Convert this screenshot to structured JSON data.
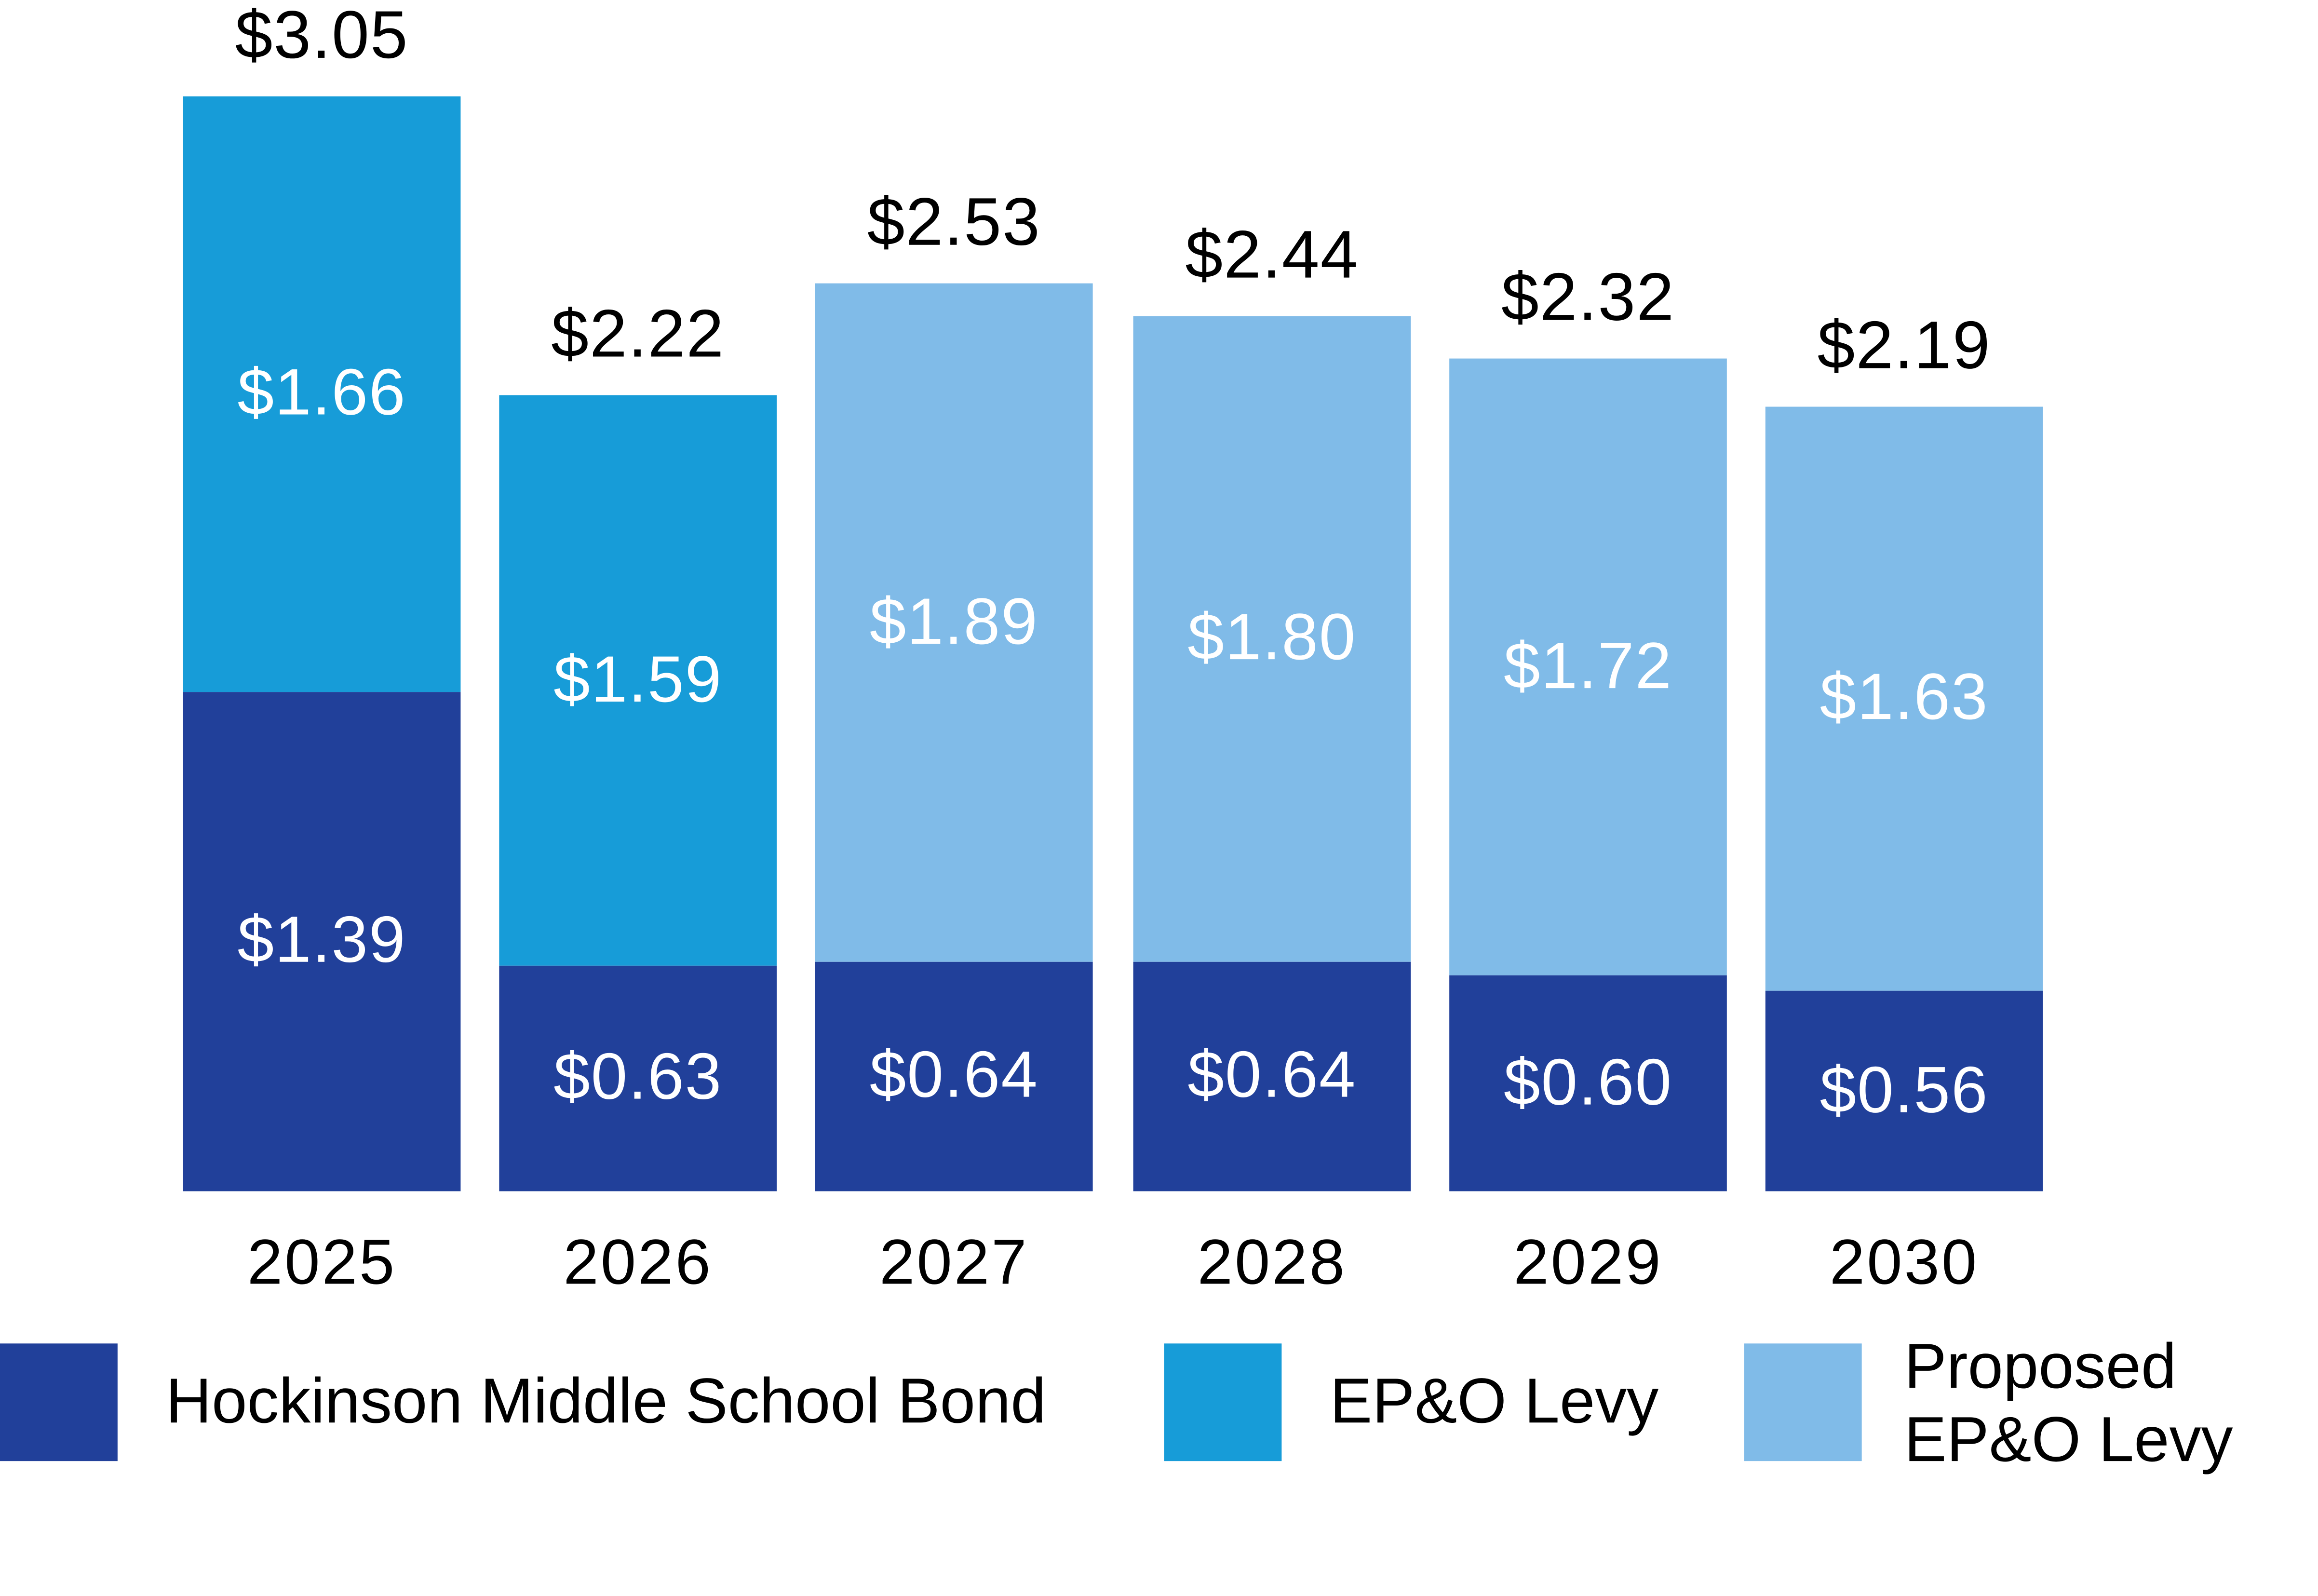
{
  "chart_data": {
    "type": "bar",
    "stacked": true,
    "title": "",
    "xlabel": "",
    "ylabel": "",
    "grid": false,
    "axes_visible": false,
    "legend_position": "bottom",
    "ylim": [
      0,
      3.3
    ],
    "categories": [
      "2025",
      "2026",
      "2027",
      "2028",
      "2029",
      "2030"
    ],
    "series": [
      {
        "name": "Hockinson Middle School Bond",
        "color": "#21409A",
        "values": [
          1.39,
          0.63,
          0.64,
          0.64,
          0.6,
          0.56
        ],
        "labels": [
          "$1.39",
          "$0.63",
          "$0.64",
          "$0.64",
          "$0.60",
          "$0.56"
        ]
      },
      {
        "name": "EP&O Levy",
        "color": "#179CD8",
        "values": [
          1.66,
          1.59,
          0,
          0,
          0,
          0
        ],
        "labels": [
          "$1.66",
          "$1.59",
          "",
          "",
          "",
          ""
        ]
      },
      {
        "name": "Proposed EP&O Levy",
        "color": "#80BBE8",
        "values": [
          0,
          0,
          1.89,
          1.8,
          1.72,
          1.63
        ],
        "labels": [
          "",
          "",
          "$1.89",
          "$1.80",
          "$1.72",
          "$1.63"
        ]
      }
    ],
    "totals": {
      "values": [
        3.05,
        2.22,
        2.53,
        2.44,
        2.32,
        2.19
      ],
      "labels": [
        "$3.05",
        "$2.22",
        "$2.53",
        "$2.44",
        "$2.32",
        "$2.19"
      ]
    },
    "value_label_color": "#FFFFFF",
    "total_label_color": "#000000"
  },
  "legend": {
    "items": [
      {
        "label": "Hockinson Middle School Bond",
        "color": "#21409A"
      },
      {
        "label": "EP&O Levy",
        "color": "#179CD8"
      },
      {
        "label": "Proposed\nEP&O Levy",
        "color": "#80BBE8"
      }
    ]
  },
  "colors": {
    "background": "#FFFFFF"
  }
}
